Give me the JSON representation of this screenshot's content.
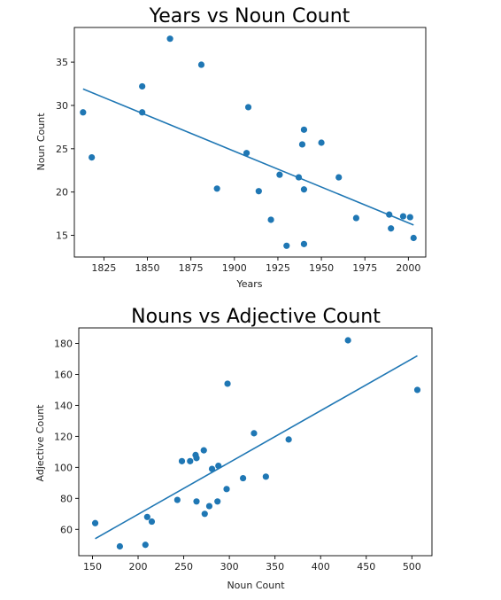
{
  "chart_data": [
    {
      "type": "scatter",
      "title": "Years vs Noun Count",
      "xlabel": "Years",
      "ylabel": "Noun Count",
      "xlim": [
        1808,
        2010
      ],
      "ylim": [
        12.5,
        39
      ],
      "xticks": [
        1825,
        1850,
        1875,
        1900,
        1925,
        1950,
        1975,
        2000
      ],
      "yticks": [
        15,
        20,
        25,
        30,
        35
      ],
      "color": "#1f77b4",
      "series": [
        {
          "x": [
            1813,
            1818,
            1847,
            1847,
            1863,
            1881,
            1890,
            1907,
            1908,
            1914,
            1921,
            1926,
            1930,
            1937,
            1939,
            1940,
            1940,
            1940,
            1950,
            1960,
            1970,
            1989,
            1990,
            1997,
            2001,
            2003
          ],
          "y": [
            29.2,
            24.0,
            32.2,
            29.2,
            37.7,
            34.7,
            20.4,
            24.5,
            29.8,
            20.1,
            16.8,
            22.0,
            13.8,
            21.7,
            25.5,
            27.2,
            20.3,
            14.0,
            25.7,
            21.7,
            17.0,
            17.4,
            15.8,
            17.2,
            17.1,
            14.7
          ]
        }
      ],
      "trendline": {
        "x": [
          1813,
          2003
        ],
        "y": [
          31.9,
          16.2
        ]
      }
    },
    {
      "type": "scatter",
      "title": "Nouns vs Adjective Count",
      "xlabel": "Noun Count",
      "ylabel": "Adjective Count",
      "xlim": [
        135,
        522
      ],
      "ylim": [
        43,
        190
      ],
      "xticks": [
        150,
        200,
        250,
        300,
        350,
        400,
        450,
        500
      ],
      "yticks": [
        60,
        80,
        100,
        120,
        140,
        160,
        180
      ],
      "color": "#1f77b4",
      "series": [
        {
          "x": [
            153,
            180,
            208,
            210,
            215,
            243,
            248,
            257,
            263,
            264,
            264,
            272,
            273,
            278,
            281,
            287,
            288,
            297,
            298,
            315,
            327,
            340,
            365,
            430,
            506
          ],
          "y": [
            64,
            49,
            50,
            68,
            65,
            79,
            104,
            104,
            108,
            106,
            78,
            111,
            70,
            75,
            99,
            78,
            101,
            86,
            154,
            93,
            122,
            94,
            118,
            182,
            150
          ]
        }
      ],
      "trendline": {
        "x": [
          153,
          506
        ],
        "y": [
          54,
          172
        ]
      }
    }
  ]
}
